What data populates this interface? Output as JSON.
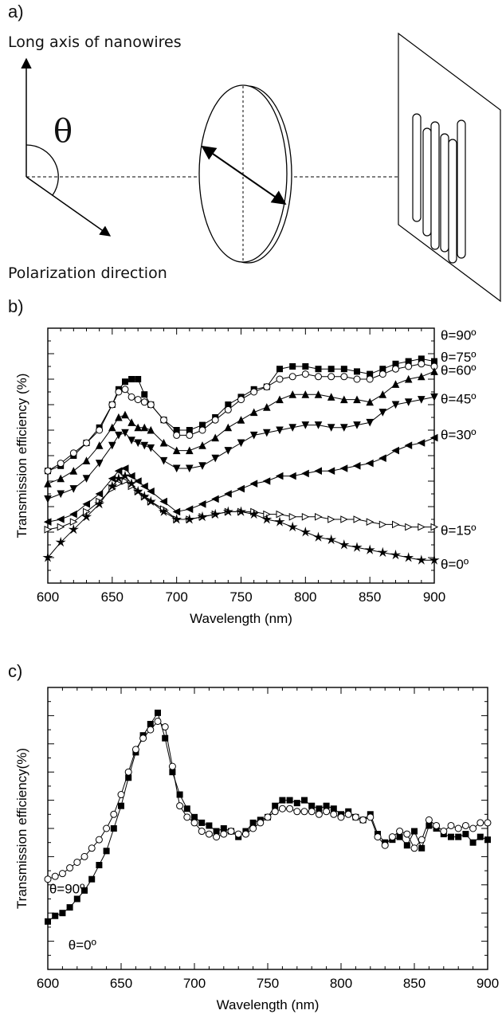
{
  "panel_a": {
    "label": "a)",
    "top_caption": "Long axis of nanowires",
    "bottom_caption": "Polarization direction",
    "theta_symbol": "θ"
  },
  "panel_b": {
    "label": "b)"
  },
  "panel_c": {
    "label": "c)"
  },
  "chart_data": [
    {
      "type": "line",
      "panel": "b)",
      "xlabel": "Wavelength (nm)",
      "ylabel": "Transmission efficiency (%)",
      "xlim": [
        600,
        900
      ],
      "ylim": [
        0,
        100
      ],
      "x_ticks": [
        600,
        650,
        700,
        750,
        800,
        850,
        900
      ],
      "y_tick_labels_shown": false,
      "grid": false,
      "legend": "series labels at right edge",
      "series": [
        {
          "name": "θ=90º",
          "marker": "filled-square",
          "x": [
            600,
            610,
            620,
            630,
            640,
            650,
            655,
            660,
            665,
            670,
            675,
            680,
            690,
            700,
            710,
            720,
            730,
            740,
            750,
            760,
            770,
            780,
            790,
            800,
            810,
            820,
            830,
            840,
            850,
            860,
            870,
            880,
            890,
            900
          ],
          "y": [
            44,
            46,
            50,
            55,
            61,
            70,
            76,
            79,
            80,
            80,
            74,
            70,
            64,
            60,
            60,
            62,
            65,
            70,
            73,
            76,
            77,
            84,
            85,
            85,
            84,
            84,
            84,
            83,
            82,
            84,
            86,
            87,
            88,
            87
          ]
        },
        {
          "name": "θ=75º",
          "marker": "open-circle",
          "x": [
            600,
            610,
            620,
            630,
            640,
            650,
            655,
            660,
            665,
            670,
            675,
            680,
            690,
            700,
            710,
            720,
            730,
            740,
            750,
            760,
            770,
            780,
            790,
            800,
            810,
            820,
            830,
            840,
            850,
            860,
            870,
            880,
            890,
            900
          ],
          "y": [
            44,
            47,
            51,
            55,
            60,
            70,
            75,
            76,
            73,
            72,
            71,
            70,
            64,
            58,
            58,
            60,
            64,
            68,
            72,
            75,
            77,
            80,
            81,
            82,
            81,
            81,
            81,
            80,
            80,
            82,
            84,
            85,
            86,
            85
          ]
        },
        {
          "name": "θ=60º",
          "marker": "filled-triangle-up",
          "x": [
            600,
            610,
            620,
            630,
            640,
            650,
            655,
            660,
            665,
            670,
            675,
            680,
            690,
            700,
            710,
            720,
            730,
            740,
            750,
            760,
            770,
            780,
            790,
            800,
            810,
            820,
            830,
            840,
            850,
            860,
            870,
            880,
            890,
            900
          ],
          "y": [
            39,
            41,
            44,
            48,
            54,
            61,
            65,
            66,
            63,
            61,
            61,
            60,
            55,
            52,
            52,
            54,
            57,
            61,
            64,
            67,
            69,
            72,
            74,
            74,
            74,
            73,
            72,
            72,
            71,
            74,
            78,
            80,
            81,
            83
          ]
        },
        {
          "name": "θ=45º",
          "marker": "filled-triangle-down",
          "x": [
            600,
            610,
            620,
            630,
            640,
            650,
            655,
            660,
            665,
            670,
            675,
            680,
            690,
            700,
            710,
            720,
            730,
            740,
            750,
            760,
            770,
            780,
            790,
            800,
            810,
            820,
            830,
            840,
            850,
            860,
            870,
            880,
            890,
            900
          ],
          "y": [
            33,
            35,
            37,
            41,
            47,
            54,
            58,
            59,
            56,
            55,
            54,
            53,
            48,
            45,
            45,
            46,
            49,
            52,
            55,
            58,
            59,
            60,
            61,
            62,
            62,
            61,
            61,
            62,
            63,
            67,
            70,
            71,
            72,
            73
          ]
        },
        {
          "name": "θ=30º",
          "marker": "filled-triangle-left",
          "x": [
            600,
            610,
            620,
            630,
            640,
            650,
            655,
            660,
            665,
            670,
            675,
            680,
            690,
            700,
            710,
            720,
            730,
            740,
            750,
            760,
            770,
            780,
            790,
            800,
            810,
            820,
            830,
            840,
            850,
            860,
            870,
            880,
            890,
            900
          ],
          "y": [
            24,
            25,
            27,
            31,
            35,
            41,
            44,
            45,
            42,
            40,
            38,
            36,
            32,
            28,
            29,
            31,
            33,
            35,
            37,
            39,
            40,
            42,
            42,
            43,
            44,
            44,
            45,
            46,
            47,
            49,
            52,
            54,
            55,
            57
          ]
        },
        {
          "name": "θ=15º",
          "marker": "open-triangle-right",
          "x": [
            600,
            610,
            620,
            630,
            640,
            650,
            655,
            660,
            665,
            670,
            675,
            680,
            690,
            700,
            710,
            720,
            730,
            740,
            750,
            760,
            770,
            780,
            790,
            800,
            810,
            820,
            830,
            840,
            850,
            860,
            870,
            880,
            890,
            900
          ],
          "y": [
            21,
            22,
            24,
            28,
            32,
            37,
            39,
            40,
            38,
            36,
            34,
            32,
            29,
            25,
            25,
            26,
            27,
            28,
            28,
            28,
            27,
            27,
            26,
            26,
            26,
            25,
            25,
            25,
            24,
            23,
            23,
            22,
            22,
            22
          ]
        },
        {
          "name": "θ=0º",
          "marker": "filled-star",
          "x": [
            600,
            610,
            620,
            630,
            640,
            650,
            655,
            660,
            665,
            670,
            675,
            680,
            690,
            700,
            710,
            720,
            730,
            740,
            750,
            760,
            770,
            780,
            790,
            800,
            810,
            820,
            830,
            840,
            850,
            860,
            870,
            880,
            890,
            900
          ],
          "y": [
            10,
            16,
            21,
            26,
            31,
            38,
            41,
            42,
            39,
            36,
            34,
            32,
            28,
            25,
            25,
            26,
            27,
            28,
            28,
            27,
            25,
            24,
            22,
            20,
            18,
            17,
            15,
            14,
            13,
            12,
            11,
            10,
            9,
            9
          ]
        }
      ]
    },
    {
      "type": "line",
      "panel": "c)",
      "xlabel": "Wavelength (nm)",
      "ylabel": "Transmission efficiency(%)",
      "xlim": [
        600,
        900
      ],
      "ylim": [
        0,
        100
      ],
      "x_ticks": [
        600,
        650,
        700,
        750,
        800,
        850,
        900
      ],
      "y_tick_labels_shown": false,
      "grid": false,
      "legend": "series labels inside plot at left",
      "series": [
        {
          "name": "θ=0º",
          "marker": "filled-square",
          "x": [
            600,
            605,
            610,
            615,
            620,
            625,
            630,
            635,
            640,
            645,
            650,
            655,
            660,
            665,
            670,
            675,
            680,
            685,
            690,
            695,
            700,
            705,
            710,
            715,
            720,
            725,
            730,
            735,
            740,
            745,
            750,
            755,
            760,
            765,
            770,
            775,
            780,
            785,
            790,
            795,
            800,
            805,
            810,
            815,
            820,
            825,
            830,
            835,
            840,
            845,
            850,
            855,
            860,
            865,
            870,
            875,
            880,
            885,
            890,
            895,
            900
          ],
          "y": [
            17,
            19,
            20,
            22,
            25,
            28,
            32,
            37,
            42,
            50,
            58,
            68,
            77,
            83,
            87,
            91,
            82,
            70,
            62,
            57,
            54,
            52,
            51,
            49,
            50,
            49,
            47,
            49,
            52,
            53,
            54,
            58,
            60,
            60,
            59,
            60,
            58,
            57,
            58,
            57,
            55,
            56,
            54,
            53,
            55,
            48,
            45,
            46,
            47,
            44,
            49,
            43,
            51,
            50,
            48,
            47,
            47,
            48,
            45,
            47,
            46
          ]
        },
        {
          "name": "θ=90º",
          "marker": "open-circle",
          "x": [
            600,
            605,
            610,
            615,
            620,
            625,
            630,
            635,
            640,
            645,
            650,
            655,
            660,
            665,
            670,
            675,
            680,
            685,
            690,
            695,
            700,
            705,
            710,
            715,
            720,
            725,
            730,
            735,
            740,
            745,
            750,
            755,
            760,
            765,
            770,
            775,
            780,
            785,
            790,
            795,
            800,
            805,
            810,
            815,
            820,
            825,
            830,
            835,
            840,
            845,
            850,
            855,
            860,
            865,
            870,
            875,
            880,
            885,
            890,
            895,
            900
          ],
          "y": [
            32,
            33,
            34,
            36,
            38,
            40,
            43,
            46,
            50,
            55,
            62,
            70,
            78,
            82,
            85,
            88,
            86,
            72,
            58,
            54,
            52,
            49,
            48,
            47,
            48,
            49,
            48,
            48,
            50,
            52,
            54,
            56,
            57,
            57,
            56,
            56,
            56,
            55,
            56,
            55,
            54,
            55,
            54,
            53,
            54,
            47,
            44,
            47,
            49,
            48,
            43,
            46,
            53,
            51,
            49,
            51,
            50,
            51,
            50,
            52,
            52
          ]
        }
      ]
    }
  ]
}
